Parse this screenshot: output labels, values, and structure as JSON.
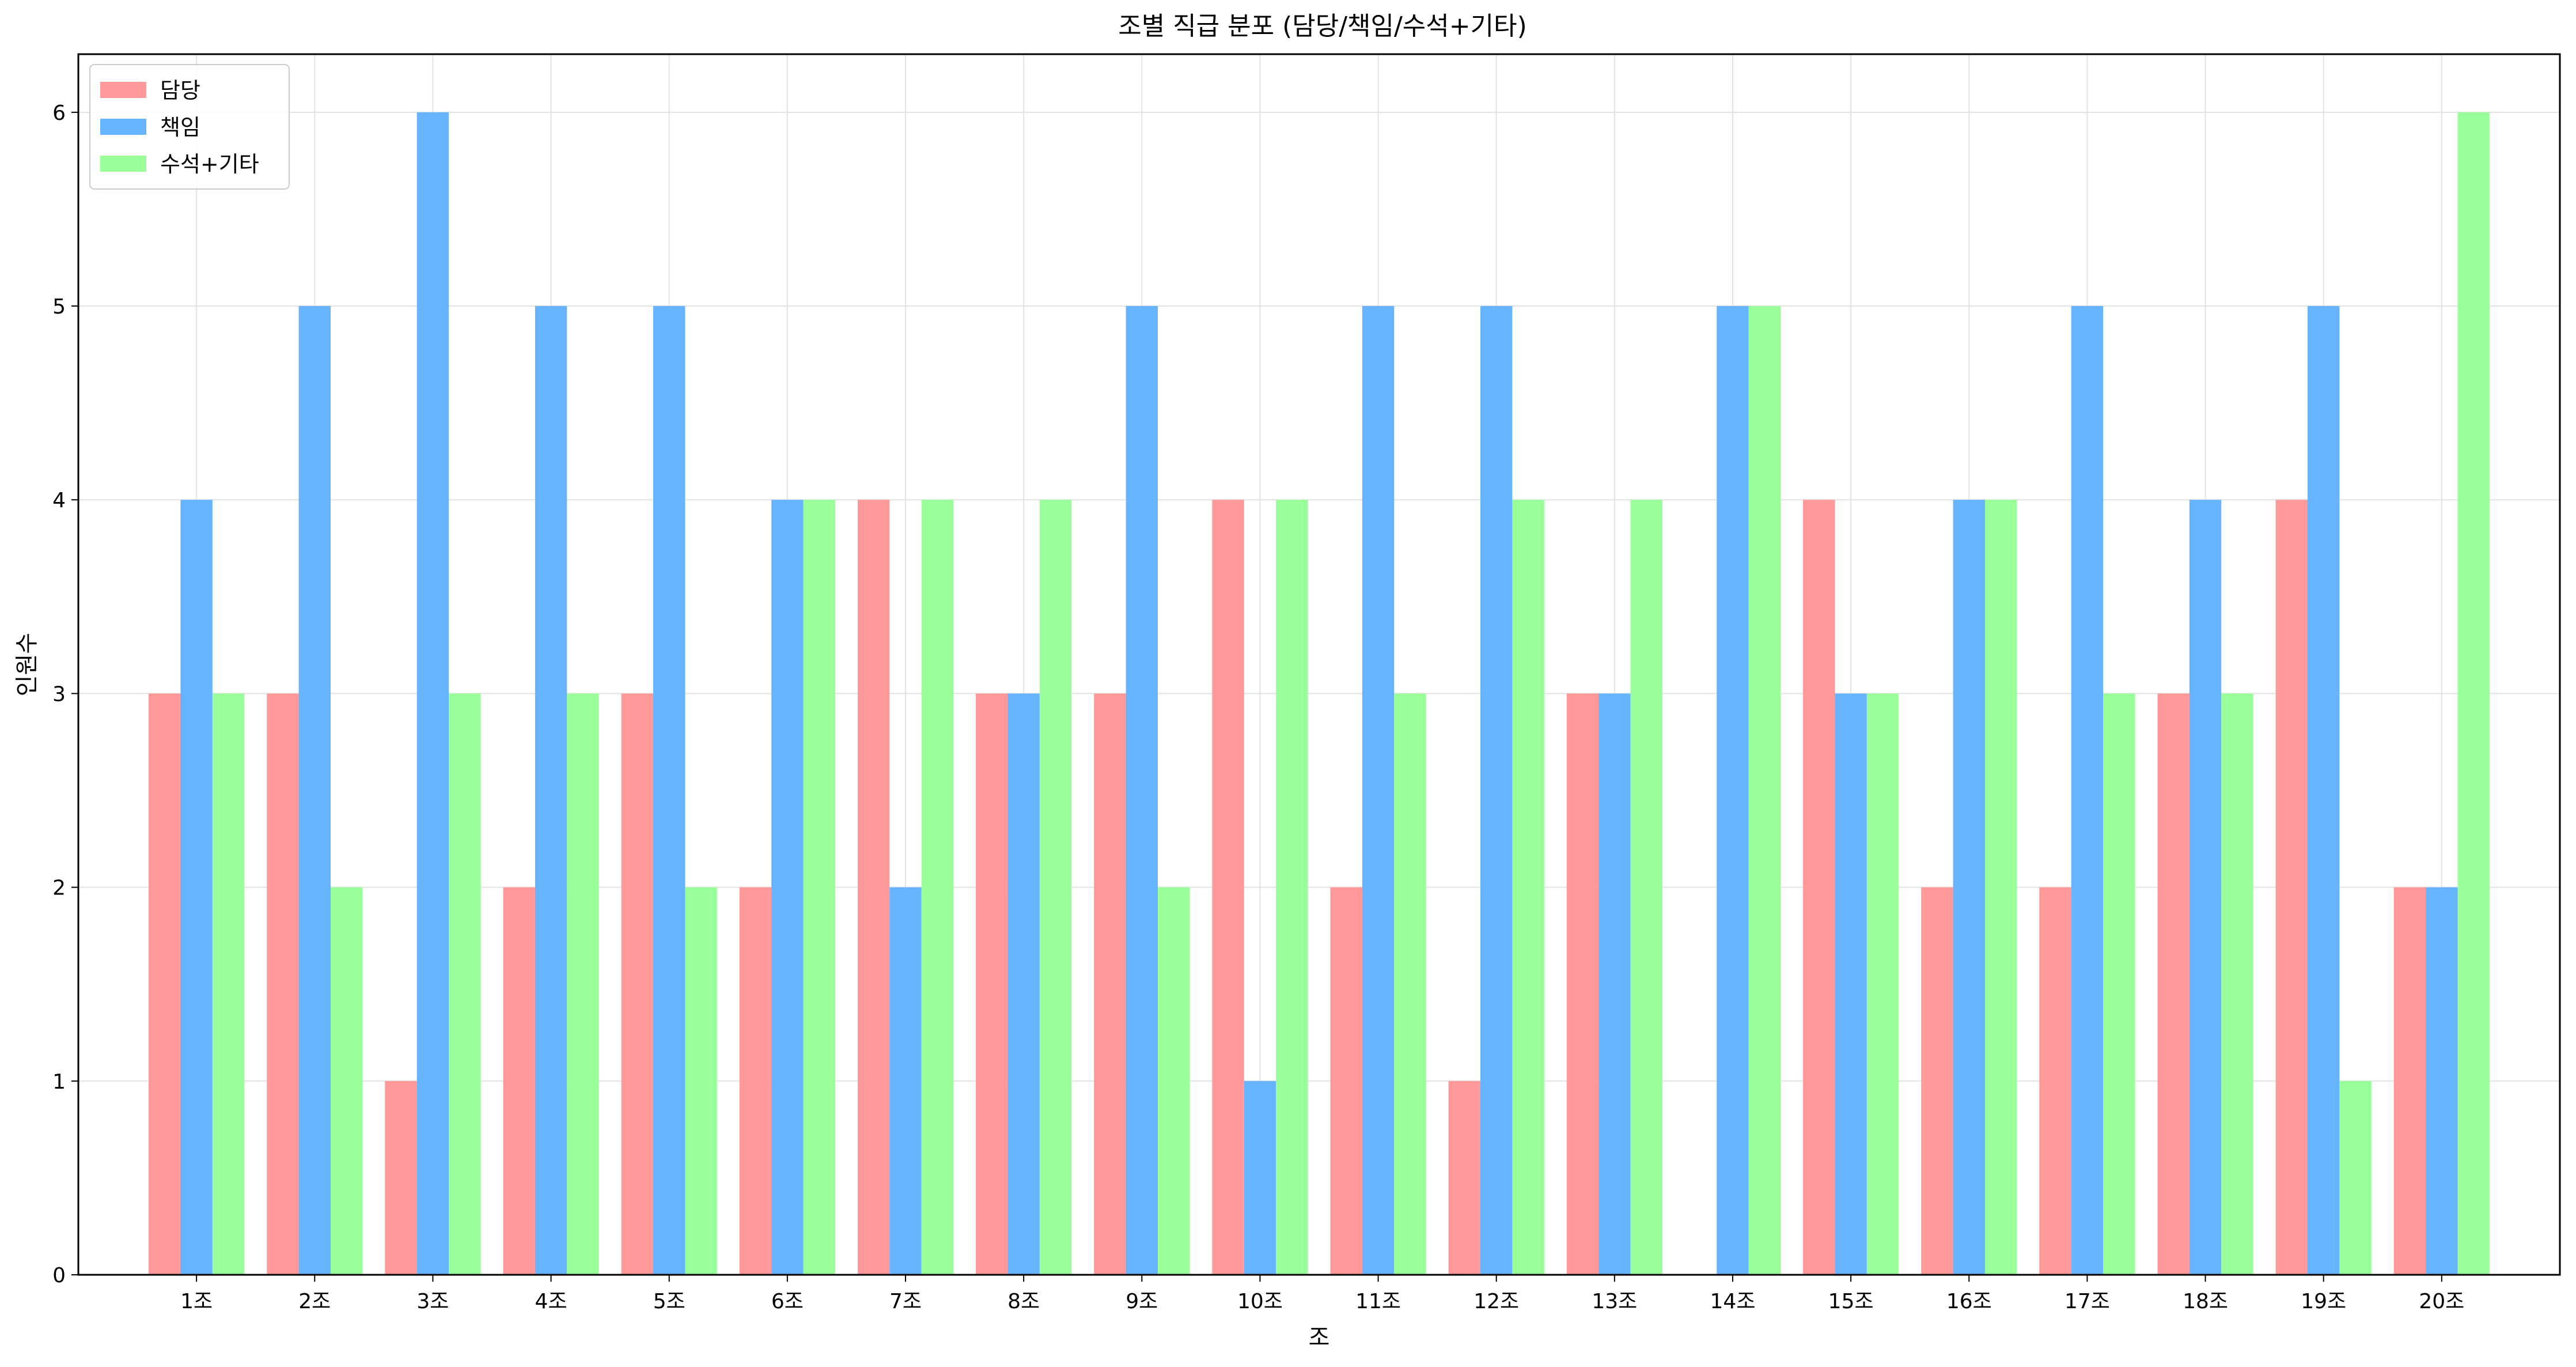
{
  "chart_data": {
    "type": "bar",
    "title": "조별 직급 분포 (담당/책임/수석+기타)",
    "xlabel": "조",
    "ylabel": "인원수",
    "categories": [
      "1조",
      "2조",
      "3조",
      "4조",
      "5조",
      "6조",
      "7조",
      "8조",
      "9조",
      "10조",
      "11조",
      "12조",
      "13조",
      "14조",
      "15조",
      "16조",
      "17조",
      "18조",
      "19조",
      "20조"
    ],
    "series": [
      {
        "name": "담당",
        "color": "#ff9999",
        "values": [
          3,
          3,
          1,
          2,
          3,
          2,
          4,
          3,
          3,
          4,
          2,
          1,
          3,
          0,
          4,
          2,
          2,
          3,
          4,
          2
        ]
      },
      {
        "name": "책임",
        "color": "#66b3ff",
        "values": [
          4,
          5,
          6,
          5,
          5,
          4,
          2,
          3,
          5,
          1,
          5,
          5,
          3,
          5,
          3,
          4,
          5,
          4,
          5,
          2
        ]
      },
      {
        "name": "수석+기타",
        "color": "#99ff99",
        "values": [
          3,
          2,
          3,
          3,
          2,
          4,
          4,
          4,
          2,
          4,
          3,
          4,
          4,
          5,
          3,
          4,
          3,
          3,
          1,
          6
        ]
      }
    ],
    "yticks": [
      "0",
      "1",
      "2",
      "3",
      "4",
      "5",
      "6"
    ],
    "ylim": [
      0,
      6.3
    ],
    "grid": true,
    "legend_position": "top-left"
  }
}
